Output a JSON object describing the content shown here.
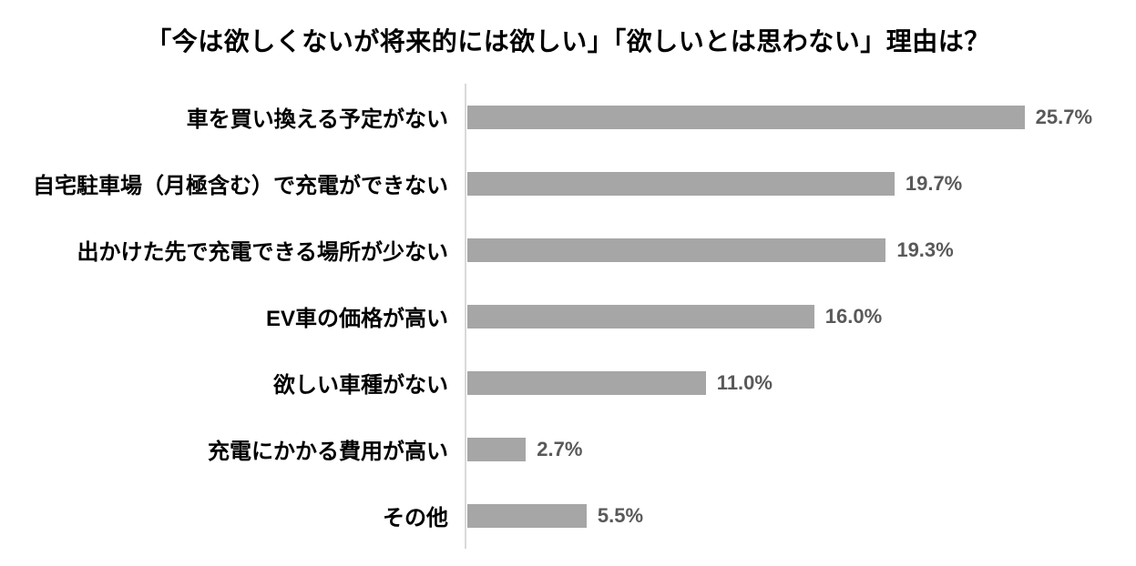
{
  "page": {
    "background_color": "#ffffff"
  },
  "chart_data": {
    "type": "bar",
    "orientation": "horizontal",
    "title": "「今は欲しくないが将来的には欲しい」「欲しいとは思わない」理由は？",
    "categories": [
      "車を買い換える予定がない",
      "自宅駐車場（月極含む）で充電ができない",
      "出かけた先で充電できる場所が少ない",
      "EV車の価格が高い",
      "欲しい車種がない",
      "充電にかかる費用が高い",
      "その他"
    ],
    "values": [
      25.7,
      19.7,
      19.3,
      16.0,
      11.0,
      2.7,
      5.5
    ],
    "value_labels": [
      "25.7%",
      "19.7%",
      "19.3%",
      "16.0%",
      "11.0%",
      "2.7%",
      "5.5%"
    ],
    "xlabel": "",
    "ylabel": "",
    "xlim": [
      0,
      30
    ],
    "grid": false,
    "legend": "none",
    "colors": {
      "bar": "#a6a6a6",
      "value_label": "#595959",
      "category_label": "#000000",
      "title": "#000000",
      "axis_line": "#d9d9d9"
    }
  }
}
